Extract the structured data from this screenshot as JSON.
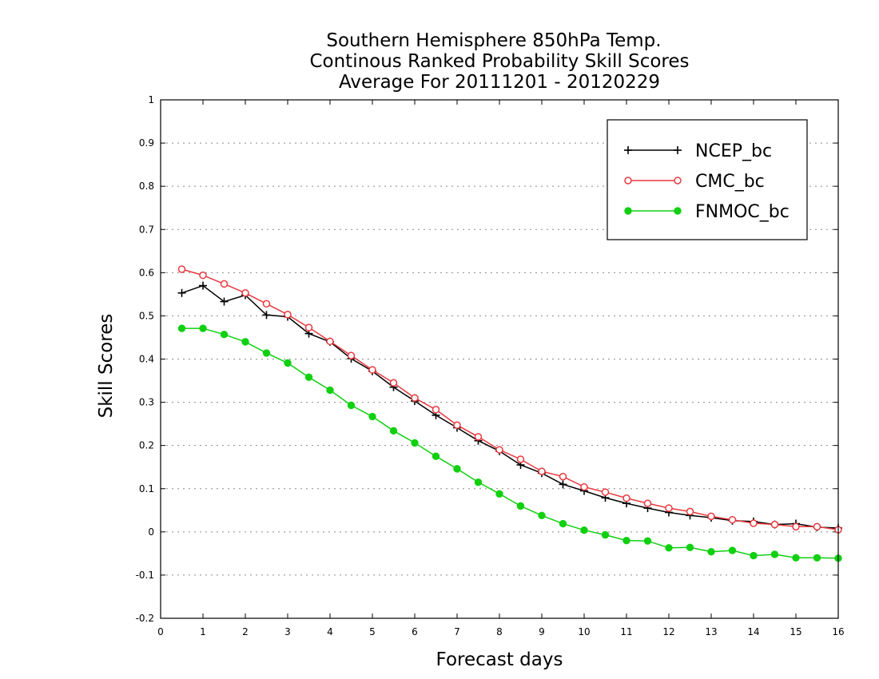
{
  "chart_data": {
    "type": "line",
    "title": [
      "Southern Hemisphere 850hPa Temp.",
      "Continous Ranked Probability Skill Scores",
      "Average For 20111201 - 20120229"
    ],
    "xlabel": "Forecast days",
    "ylabel": "Skill Scores",
    "xlim": [
      0,
      16
    ],
    "ylim": [
      -0.2,
      1
    ],
    "xticks": [
      "0",
      "1",
      "2",
      "3",
      "4",
      "5",
      "6",
      "7",
      "8",
      "9",
      "10",
      "11",
      "12",
      "13",
      "14",
      "15",
      "16"
    ],
    "yticks": [
      "1",
      "0.9",
      "0.8",
      "0.7",
      "0.6",
      "0.5",
      "0.4",
      "0.3",
      "0.2",
      "0.1",
      "0",
      "-0.1",
      "-0.2"
    ],
    "grid": true,
    "legend_position": "top-right",
    "x": [
      0.5,
      1,
      1.5,
      2,
      2.5,
      3,
      3.5,
      4,
      4.5,
      5,
      5.5,
      6,
      6.5,
      7,
      7.5,
      8,
      8.5,
      9,
      9.5,
      10,
      10.5,
      11,
      11.5,
      12,
      12.5,
      13,
      13.5,
      14,
      14.5,
      15,
      15.5,
      16
    ],
    "series": [
      {
        "name": "NCEP_bc",
        "color": "#000000",
        "marker": "plus",
        "values": [
          0.553,
          0.57,
          0.533,
          0.548,
          0.502,
          0.498,
          0.459,
          0.44,
          0.401,
          0.372,
          0.335,
          0.303,
          0.27,
          0.241,
          0.211,
          0.187,
          0.155,
          0.136,
          0.11,
          0.095,
          0.079,
          0.066,
          0.055,
          0.045,
          0.038,
          0.033,
          0.026,
          0.024,
          0.017,
          0.019,
          0.011,
          0.009
        ]
      },
      {
        "name": "CMC_bc",
        "color": "#e8393f",
        "marker": "open-circle",
        "values": [
          0.608,
          0.594,
          0.574,
          0.553,
          0.528,
          0.503,
          0.473,
          0.441,
          0.408,
          0.375,
          0.345,
          0.31,
          0.283,
          0.247,
          0.22,
          0.19,
          0.168,
          0.14,
          0.128,
          0.104,
          0.092,
          0.078,
          0.066,
          0.055,
          0.047,
          0.036,
          0.028,
          0.02,
          0.017,
          0.012,
          0.012,
          0.005
        ]
      },
      {
        "name": "FNMOC_bc",
        "color": "#10d010",
        "marker": "filled-circle",
        "values": [
          0.471,
          0.471,
          0.457,
          0.44,
          0.414,
          0.391,
          0.358,
          0.328,
          0.293,
          0.267,
          0.234,
          0.206,
          0.175,
          0.146,
          0.115,
          0.088,
          0.06,
          0.038,
          0.019,
          0.004,
          -0.007,
          -0.02,
          -0.021,
          -0.037,
          -0.036,
          -0.046,
          -0.043,
          -0.055,
          -0.052,
          -0.06,
          -0.06,
          -0.061
        ]
      }
    ]
  }
}
